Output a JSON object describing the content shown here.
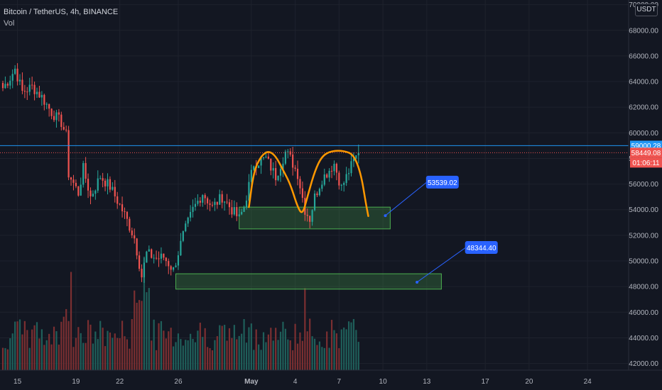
{
  "header": {
    "symbol_line": "Bitcoin / TetherUS, 4h, BINANCE",
    "indicator": "Vol",
    "currency": "USDT"
  },
  "colors": {
    "background": "#131722",
    "grid": "#1e222d",
    "up": "#26a69a",
    "down": "#ef5350",
    "vol_up": "#1f5f5a",
    "vol_down": "#7b2f31",
    "hline": "#2196f3",
    "pattern": "#ff9800",
    "zone_fill": "rgba(76,175,80,0.25)",
    "zone_stroke": "#4caf50",
    "callout": "#2962ff"
  },
  "chart_data": {
    "type": "candlestick",
    "timeframe": "4h",
    "exchange": "BINANCE",
    "yaxis": {
      "ticks": [
        "70000.00",
        "68000.00",
        "66000.00",
        "64000.00",
        "62000.00",
        "60000.00",
        "58000.00",
        "56000.00",
        "54000.00",
        "52000.00",
        "50000.00",
        "48000.00",
        "46000.00",
        "44000.00",
        "42000.00"
      ],
      "ylim": [
        41700,
        70200
      ]
    },
    "xaxis": {
      "ticks": [
        {
          "label": "15",
          "i": 6
        },
        {
          "label": "19",
          "i": 30
        },
        {
          "label": "22",
          "i": 48
        },
        {
          "label": "26",
          "i": 72
        },
        {
          "label": "May",
          "i": 102
        },
        {
          "label": "4",
          "i": 120
        },
        {
          "label": "7",
          "i": 138
        },
        {
          "label": "10",
          "i": 156
        },
        {
          "label": "13",
          "i": 174
        },
        {
          "label": "17",
          "i": 198
        },
        {
          "label": "20",
          "i": 216
        },
        {
          "label": "24",
          "i": 240
        }
      ]
    },
    "price_labels": [
      {
        "value": "59000.28",
        "price": 59000,
        "color": "#2196f3"
      },
      {
        "value": "58449.08",
        "price": 58449,
        "color": "#ef5350"
      },
      {
        "value": "01:06:11",
        "price": 58000,
        "color": "#ef5350"
      }
    ],
    "horizontal_line": 59000,
    "zones": [
      {
        "i1": 97,
        "i2": 159,
        "p1": 52500,
        "p2": 54200
      },
      {
        "i1": 71,
        "i2": 180,
        "p1": 47800,
        "p2": 49000
      }
    ],
    "targets": [
      {
        "label": "53539.02",
        "price": 53539,
        "i": 157,
        "box_i": 174,
        "box_price": 56150
      },
      {
        "label": "48344.40",
        "price": 48344,
        "i": 170,
        "box_i": 190,
        "box_price": 51050
      }
    ],
    "anchors": [
      {
        "i": 0,
        "price": 63500
      },
      {
        "i": 3,
        "price": 64300
      },
      {
        "i": 5,
        "price": 65000
      },
      {
        "i": 8,
        "price": 63200
      },
      {
        "i": 12,
        "price": 63600
      },
      {
        "i": 16,
        "price": 62800
      },
      {
        "i": 20,
        "price": 61600
      },
      {
        "i": 24,
        "price": 60800
      },
      {
        "i": 26,
        "price": 59800
      },
      {
        "i": 27,
        "price": 56800
      },
      {
        "i": 31,
        "price": 55300
      },
      {
        "i": 33,
        "price": 57200
      },
      {
        "i": 36,
        "price": 55000
      },
      {
        "i": 40,
        "price": 56600
      },
      {
        "i": 44,
        "price": 55800
      },
      {
        "i": 50,
        "price": 53600
      },
      {
        "i": 54,
        "price": 51800
      },
      {
        "i": 57,
        "price": 48800
      },
      {
        "i": 59,
        "price": 50600
      },
      {
        "i": 63,
        "price": 50200
      },
      {
        "i": 66,
        "price": 50300
      },
      {
        "i": 70,
        "price": 49300
      },
      {
        "i": 74,
        "price": 52000
      },
      {
        "i": 78,
        "price": 54000
      },
      {
        "i": 82,
        "price": 55300
      },
      {
        "i": 86,
        "price": 54200
      },
      {
        "i": 90,
        "price": 55000
      },
      {
        "i": 94,
        "price": 54000
      },
      {
        "i": 97,
        "price": 53300
      },
      {
        "i": 99,
        "price": 54200
      },
      {
        "i": 103,
        "price": 57600
      },
      {
        "i": 108,
        "price": 58000
      },
      {
        "i": 112,
        "price": 56600
      },
      {
        "i": 116,
        "price": 58500
      },
      {
        "i": 118,
        "price": 58000
      },
      {
        "i": 121,
        "price": 56800
      },
      {
        "i": 124,
        "price": 54000
      },
      {
        "i": 126,
        "price": 53300
      },
      {
        "i": 128,
        "price": 55000
      },
      {
        "i": 131,
        "price": 56400
      },
      {
        "i": 136,
        "price": 57600
      },
      {
        "i": 139,
        "price": 55700
      },
      {
        "i": 142,
        "price": 57000
      },
      {
        "i": 144,
        "price": 57800
      },
      {
        "i": 146,
        "price": 58449
      }
    ],
    "pattern_path": [
      {
        "i": 101,
        "price": 54200
      },
      {
        "i": 103,
        "price": 57000
      },
      {
        "i": 106,
        "price": 58200
      },
      {
        "i": 109,
        "price": 58600
      },
      {
        "i": 112,
        "price": 58200
      },
      {
        "i": 115,
        "price": 57100
      },
      {
        "i": 118,
        "price": 56000
      },
      {
        "i": 121,
        "price": 54200
      },
      {
        "i": 123,
        "price": 53600
      },
      {
        "i": 125,
        "price": 55000
      },
      {
        "i": 128,
        "price": 57000
      },
      {
        "i": 131,
        "price": 58200
      },
      {
        "i": 135,
        "price": 58600
      },
      {
        "i": 140,
        "price": 58600
      },
      {
        "i": 144,
        "price": 58300
      },
      {
        "i": 147,
        "price": 56800
      },
      {
        "i": 149,
        "price": 54500
      },
      {
        "i": 150,
        "price": 53500
      }
    ]
  }
}
